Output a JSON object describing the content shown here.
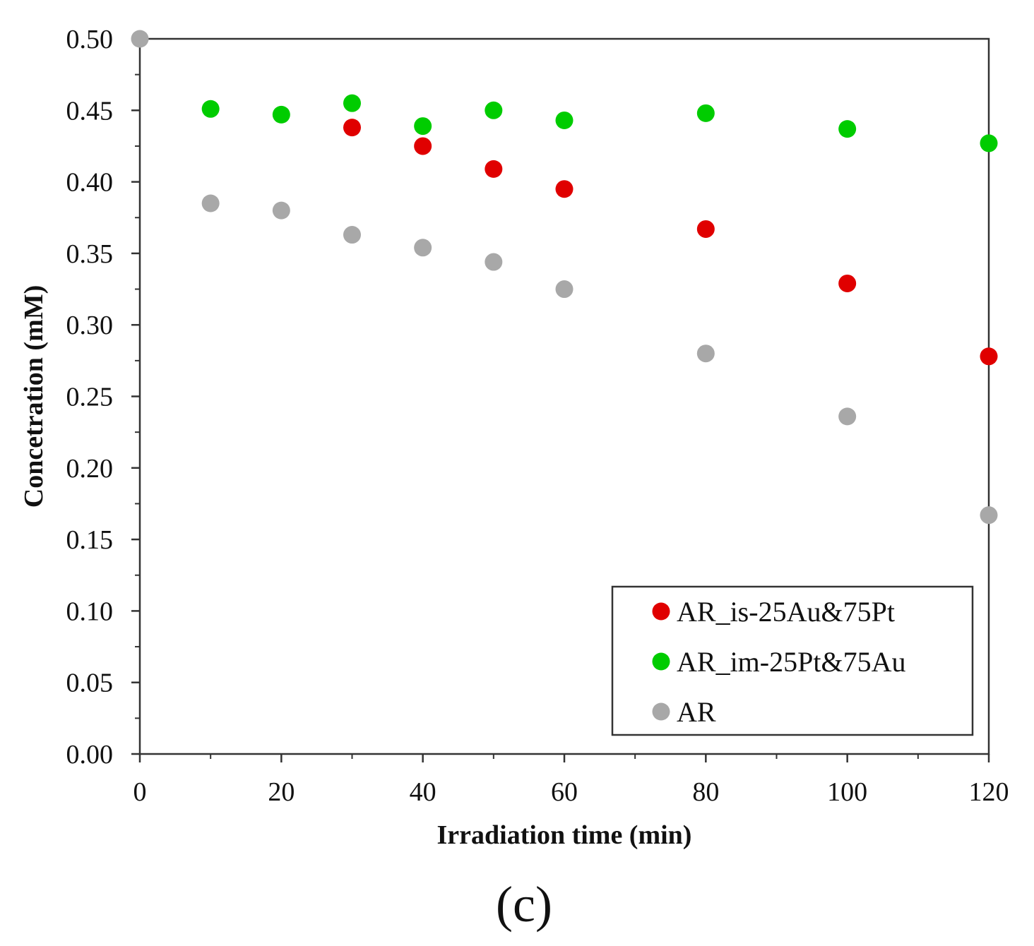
{
  "chart_data": {
    "type": "scatter",
    "title": "",
    "xlabel": "Irradiation time (min)",
    "ylabel": "Concetration (mM)",
    "xlim": [
      0,
      120
    ],
    "ylim": [
      0,
      0.5
    ],
    "xticks": [
      0,
      20,
      40,
      60,
      80,
      100,
      120
    ],
    "xtick_labels": [
      "0",
      "20",
      "40",
      "60",
      "80",
      "100",
      "120"
    ],
    "yticks": [
      0,
      0.05,
      0.1,
      0.15,
      0.2,
      0.25,
      0.3,
      0.35,
      0.4,
      0.45,
      0.5
    ],
    "ytick_labels": [
      "0.00",
      "0.05",
      "0.10",
      "0.15",
      "0.20",
      "0.25",
      "0.30",
      "0.35",
      "0.40",
      "0.45",
      "0.50"
    ],
    "grid": false,
    "legend_position": "bottom-right",
    "series": [
      {
        "name": "AR_is-25Au&75Pt",
        "color": "#e00000",
        "x": [
          30,
          40,
          50,
          60,
          80,
          100,
          120
        ],
        "y": [
          0.438,
          0.425,
          0.409,
          0.395,
          0.367,
          0.329,
          0.278
        ]
      },
      {
        "name": "AR_im-25Pt&75Au",
        "color": "#00cc00",
        "x": [
          10,
          20,
          30,
          40,
          50,
          60,
          80,
          100,
          120
        ],
        "y": [
          0.451,
          0.447,
          0.455,
          0.439,
          0.45,
          0.443,
          0.448,
          0.437,
          0.427
        ]
      },
      {
        "name": "AR",
        "color": "#a8a8a8",
        "x": [
          0,
          10,
          20,
          30,
          40,
          50,
          60,
          80,
          100,
          120
        ],
        "y": [
          0.5,
          0.385,
          0.38,
          0.363,
          0.354,
          0.344,
          0.325,
          0.28,
          0.236,
          0.167
        ]
      }
    ]
  },
  "panel_label": "(c)"
}
